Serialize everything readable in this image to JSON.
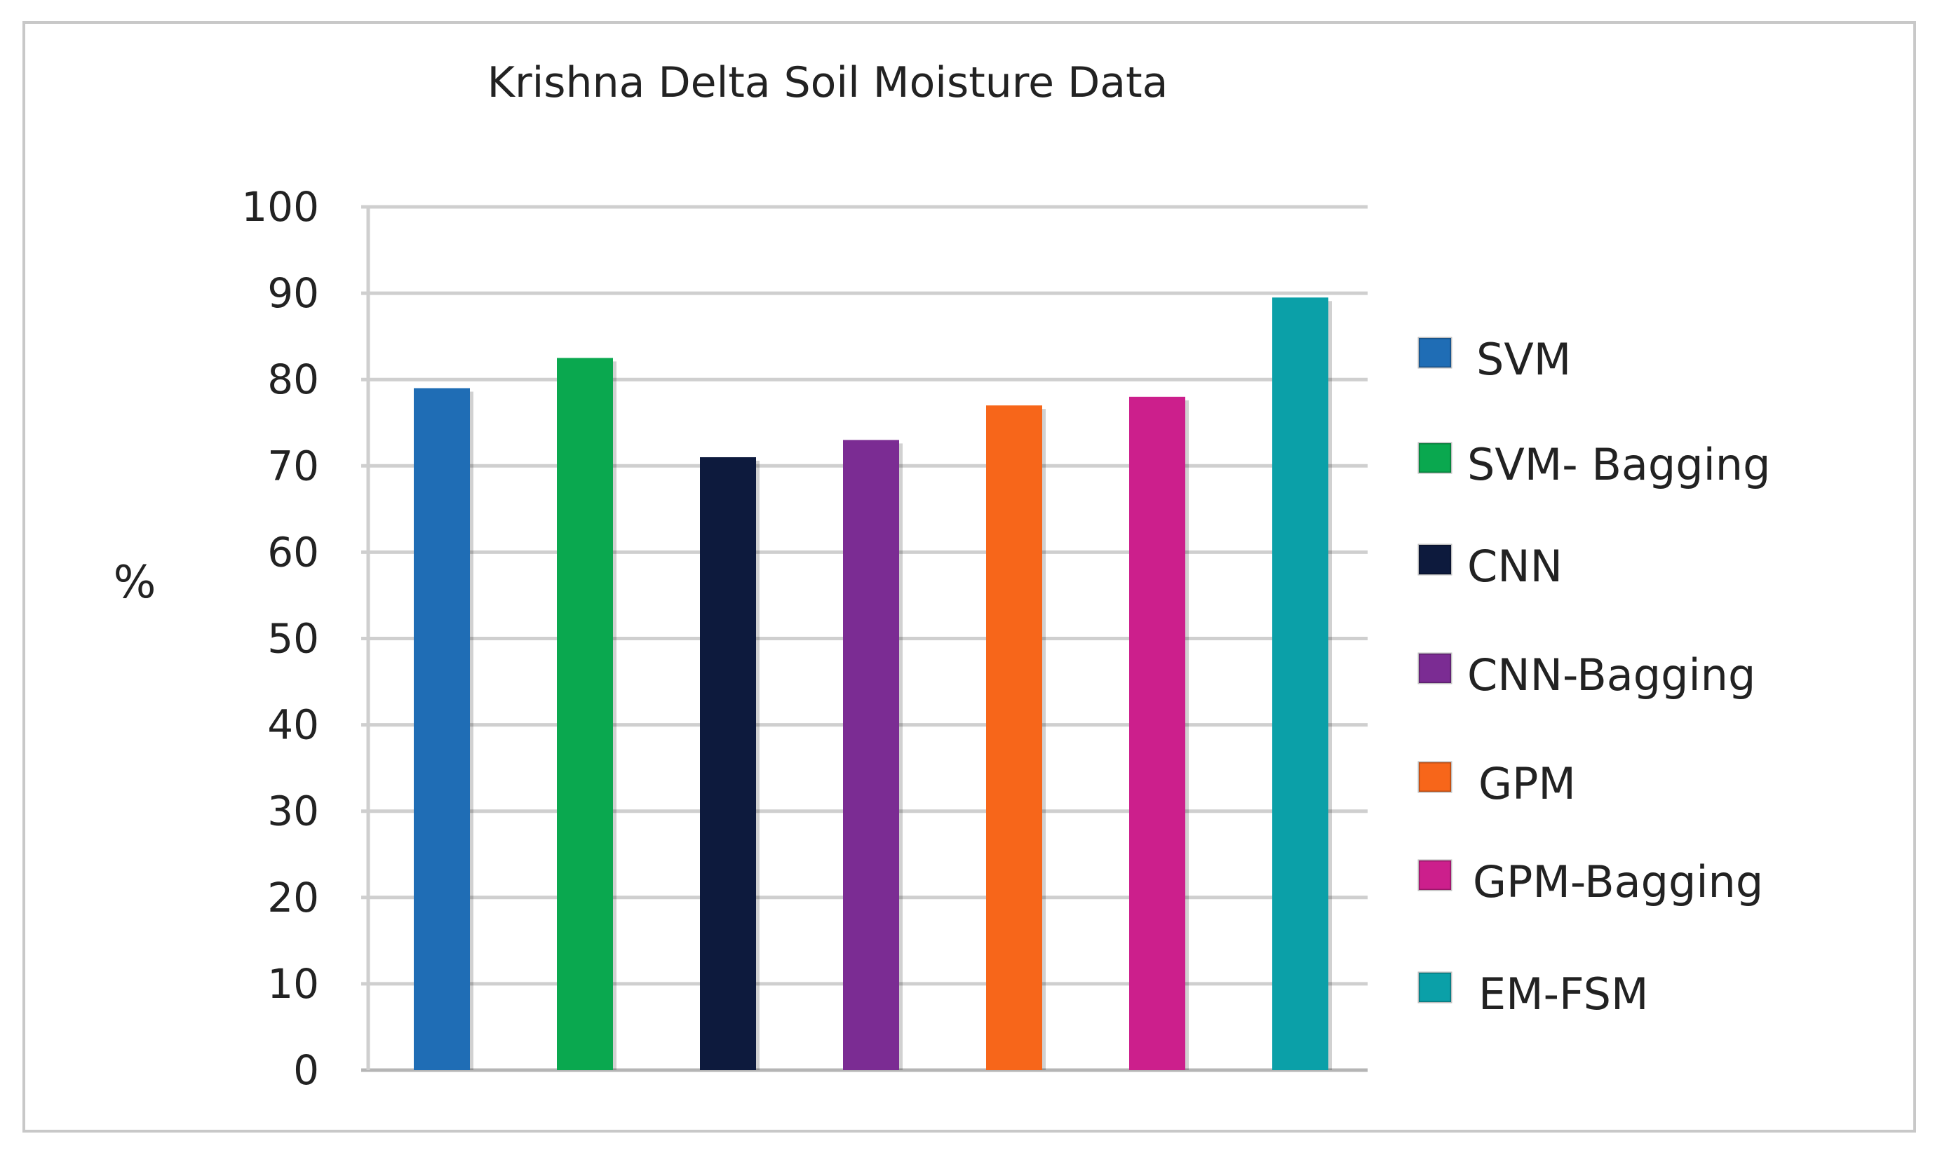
{
  "chart_data": {
    "type": "bar",
    "title": "Krishna Delta Soil Moisture Data",
    "ylabel": "%",
    "xlabel": "",
    "ylim": [
      0,
      100
    ],
    "yticks": [
      0,
      10,
      20,
      30,
      40,
      50,
      60,
      70,
      80,
      90,
      100
    ],
    "grid": true,
    "legend_position": "right",
    "categories": [
      "SVM",
      "SVM- Bagging",
      "CNN",
      "CNN-Bagging",
      "GPM",
      "GPM-Bagging",
      "EM-FSM"
    ],
    "values": [
      79,
      82.5,
      71,
      73,
      77,
      78,
      89.5
    ],
    "colors": [
      "#1f6db5",
      "#0aa84f",
      "#0d1a3d",
      "#7b2c93",
      "#f7661a",
      "#cc1f8c",
      "#0ba0a8"
    ]
  }
}
